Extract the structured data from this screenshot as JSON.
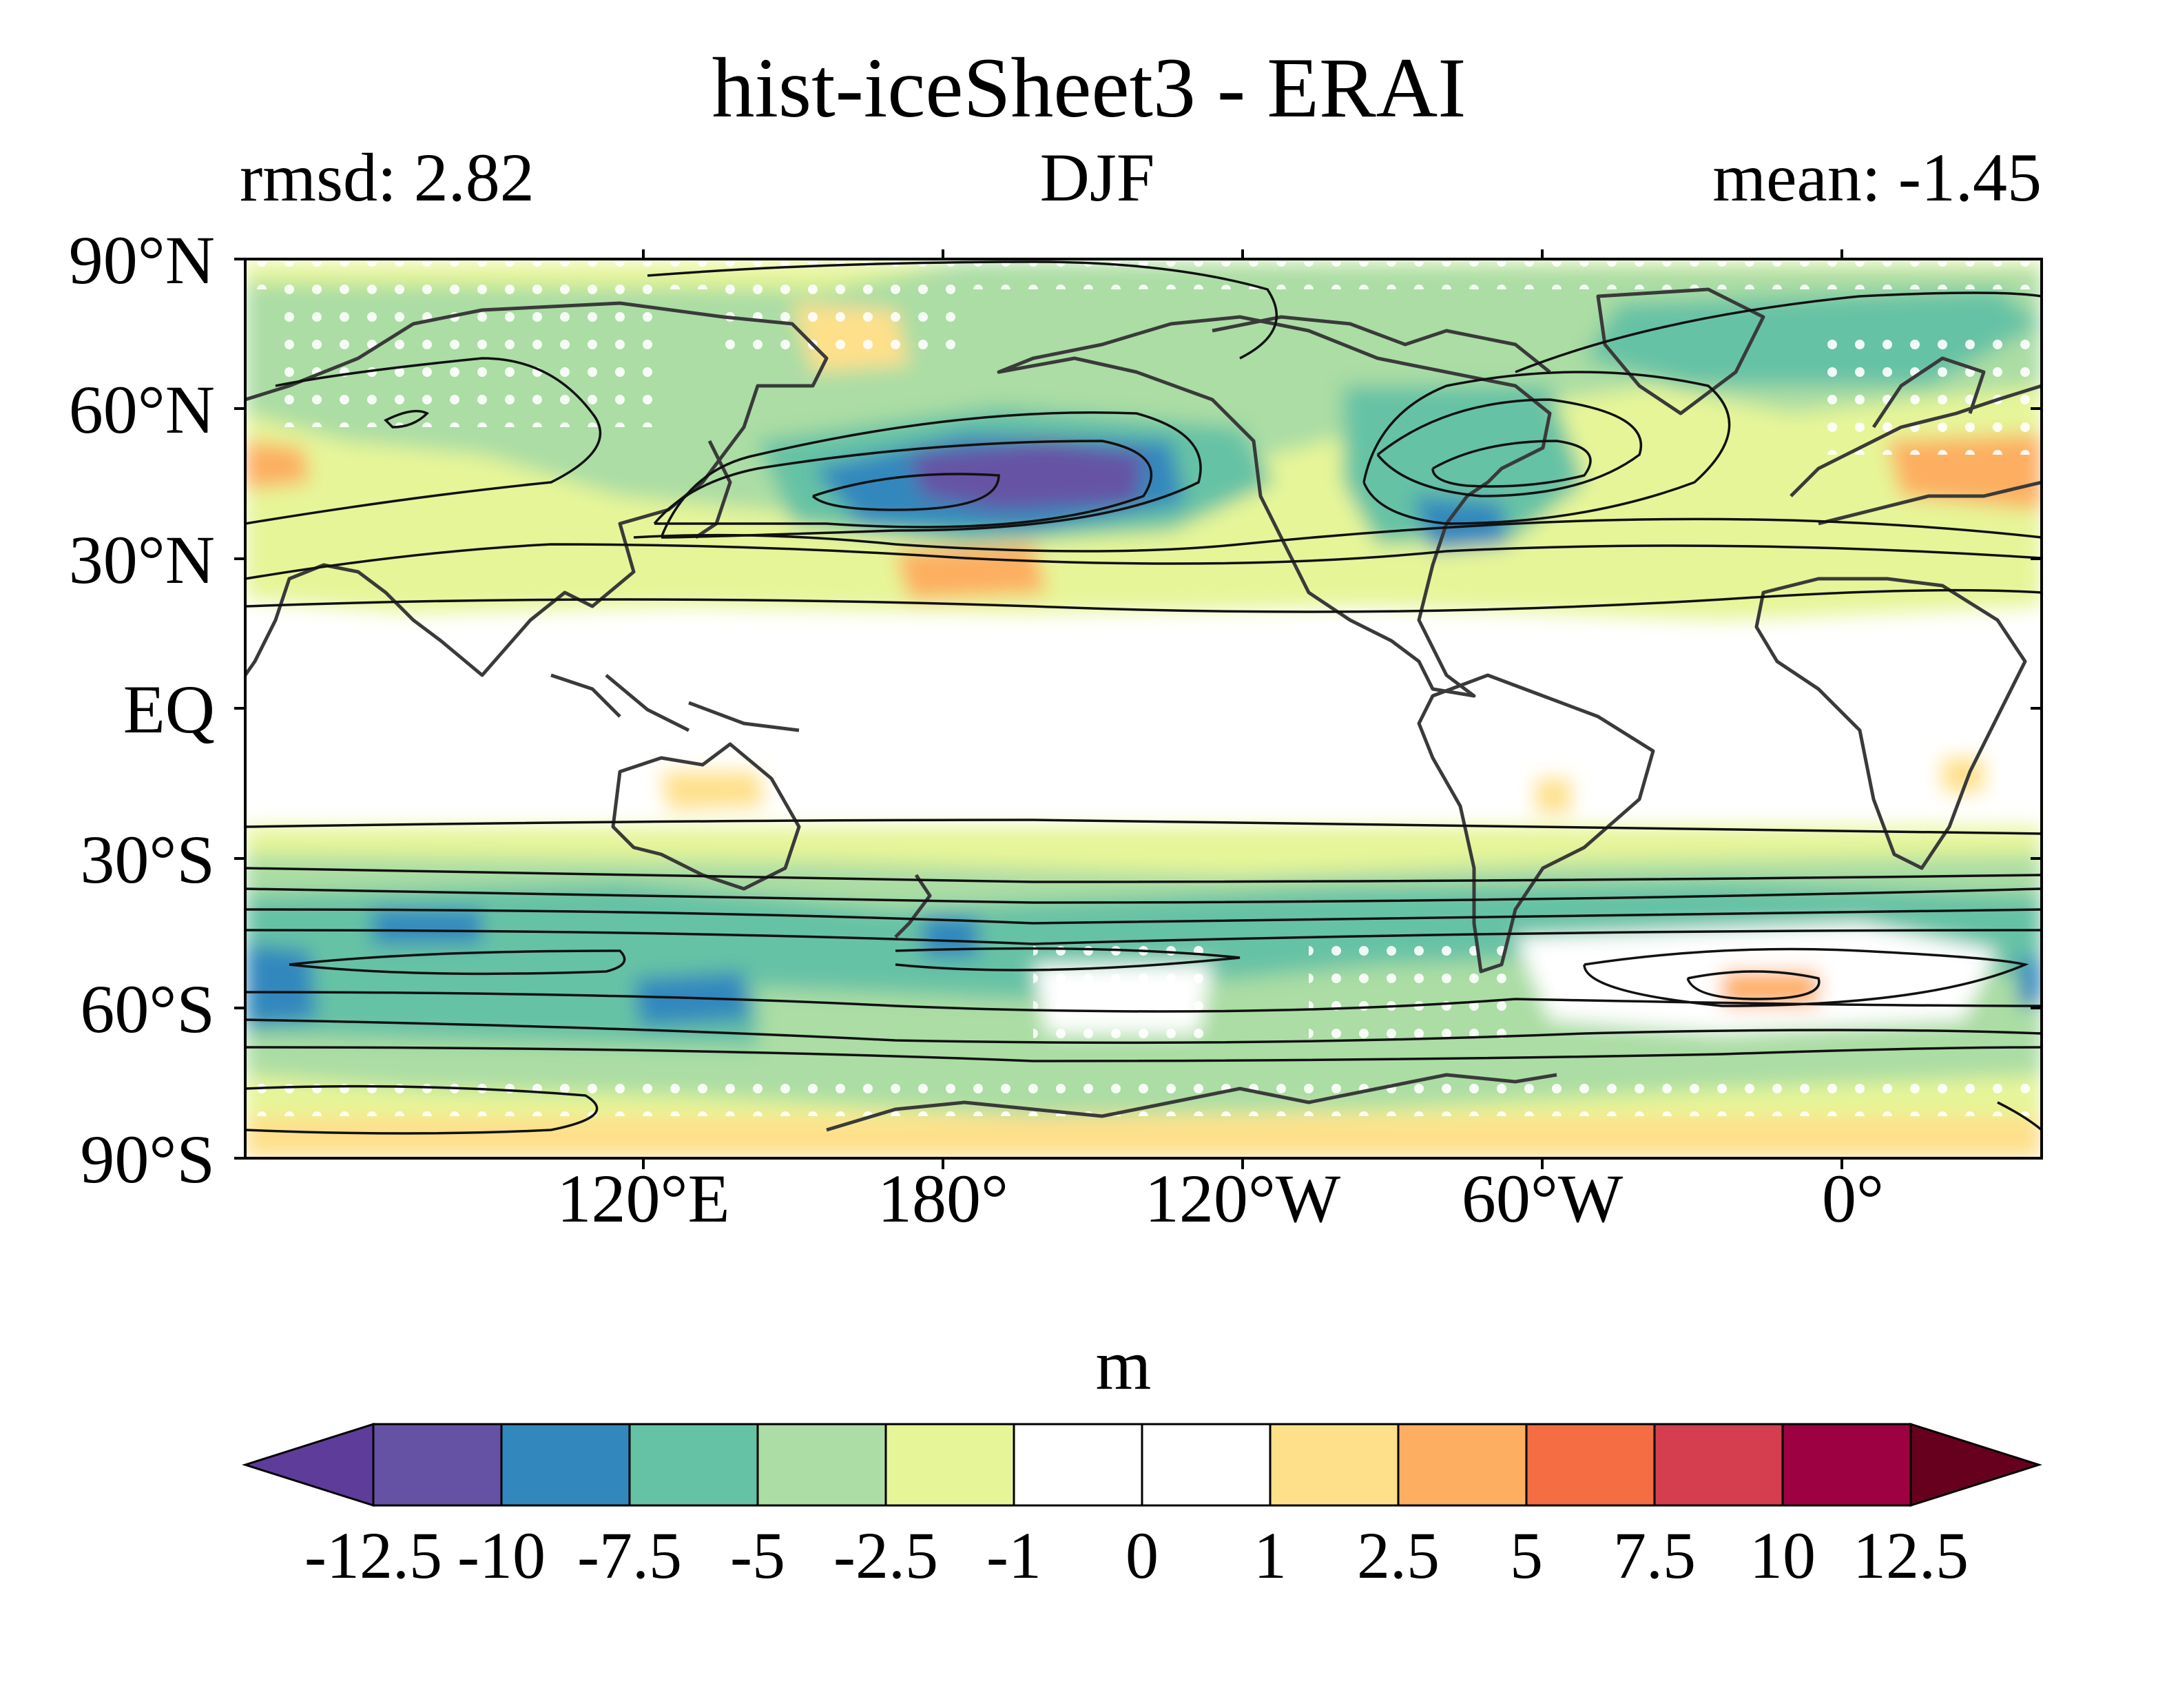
{
  "title": "hist-iceSheet3 - ERAI",
  "rmsd": "rmsd: 2.82",
  "season": "DJF",
  "mean": "mean: -1.45",
  "lat_labels": [
    "90°N",
    "60°N",
    "30°N",
    "EQ",
    "30°S",
    "60°S",
    "90°S"
  ],
  "lon_labels": [
    "120°E",
    "180°",
    "120°W",
    "60°W",
    "0°"
  ],
  "colorbar": {
    "unit": "m",
    "levels": [
      "-12.5",
      "-10",
      "-7.5",
      "-5",
      "-2.5",
      "-1",
      "0",
      "1",
      "2.5",
      "5",
      "7.5",
      "10",
      "12.5"
    ],
    "colors": [
      "#5e3c99",
      "#6652a4",
      "#3288bd",
      "#66c2a5",
      "#abdda4",
      "#e6f598",
      "#ffffff",
      "#ffffff",
      "#fee08b",
      "#fdae61",
      "#f46d43",
      "#d53e4f",
      "#9e0142",
      "#67001f"
    ]
  },
  "field_colors": {
    "strong_neg": "#6652a4",
    "neg_75": "#3288bd",
    "neg_5": "#66c2a5",
    "neg_25": "#abdda4",
    "neg_1": "#e6f598",
    "pos_1": "#fee08b",
    "pos_25": "#fdae61",
    "pos_5": "#f46d43"
  }
}
